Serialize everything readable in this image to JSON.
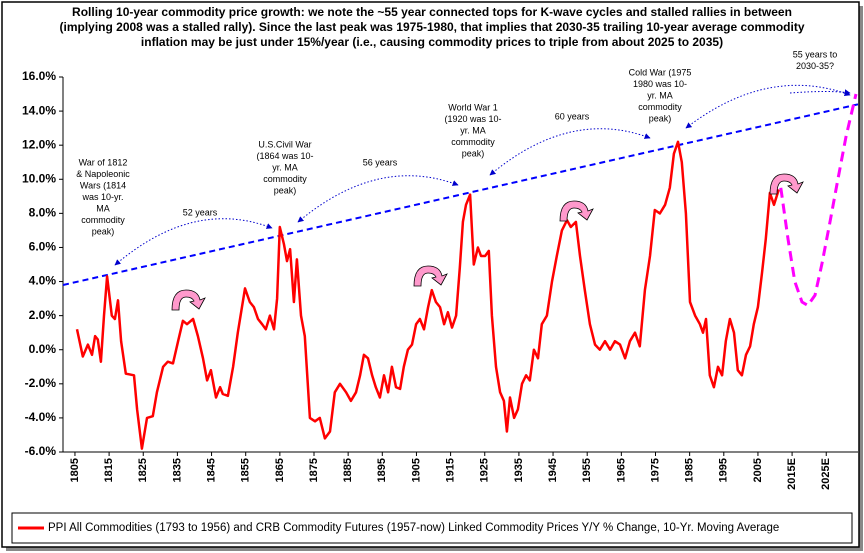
{
  "chart_data": {
    "type": "line",
    "title": [
      "Rolling 10-year commodity price growth: we note the ~55 year connected tops for K-wave cycles and stalled rallies in between",
      "(implying 2008 was a stalled rally). Since the last peak was 1975-1980, that implies that 2030-35 trailing 10-year average commodity",
      "inflation may be just under 15%/year (i.e., causing commodity prices to triple from about 2025 to 2035)"
    ],
    "xlim": [
      1801.5,
      2034.3
    ],
    "xticks": [
      1805,
      1815,
      1825,
      1835,
      1845,
      1855,
      1865,
      1875,
      1885,
      1895,
      1905,
      1915,
      1925,
      1935,
      1945,
      1955,
      1965,
      1975,
      1985,
      1995,
      2005,
      {
        "value": 2015,
        "label": "2015E"
      },
      {
        "value": 2025,
        "label": "2025E"
      }
    ],
    "ylim": [
      -6,
      16
    ],
    "yticks": [
      {
        "value": -6,
        "label": "-6.0%"
      },
      {
        "value": -4,
        "label": "-4.0%"
      },
      {
        "value": -2,
        "label": "-2.0%"
      },
      {
        "value": 0,
        "label": "0.0%"
      },
      {
        "value": 2,
        "label": "2.0%"
      },
      {
        "value": 4,
        "label": "4.0%"
      },
      {
        "value": 6,
        "label": "6.0%"
      },
      {
        "value": 8,
        "label": "8.0%"
      },
      {
        "value": 10,
        "label": "10.0%"
      },
      {
        "value": 12,
        "label": "12.0%"
      },
      {
        "value": 14,
        "label": "14.0%"
      },
      {
        "value": 16,
        "label": "16.0%"
      }
    ],
    "series": [
      {
        "name": "PPI All Commodities (1793 to 1956) and CRB Commodity Futures (1957-now) Linked Commodity Prices Y/Y % Change, 10-Yr. Moving Average",
        "color": "#ff0000",
        "x": [
          1805.6,
          1807.3,
          1808.8,
          1810,
          1810.9,
          1811.7,
          1812.6,
          1813.5,
          1814.4,
          1815.8,
          1816.7,
          1817.6,
          1818.5,
          1819.9,
          1822.3,
          1823.2,
          1824.6,
          1826.1,
          1827.8,
          1829,
          1830.8,
          1832.2,
          1833.7,
          1835.2,
          1836.6,
          1837.8,
          1839.6,
          1841,
          1842.5,
          1843.7,
          1844.8,
          1846.3,
          1847.5,
          1848.3,
          1849.8,
          1851.3,
          1852.7,
          1854.8,
          1856.2,
          1857.4,
          1858.6,
          1859.8,
          1860.9,
          1862.1,
          1863.3,
          1864.2,
          1865,
          1866.2,
          1867.1,
          1868,
          1869.1,
          1870,
          1871.2,
          1872.3,
          1873.8,
          1875.3,
          1876.7,
          1878.2,
          1879.7,
          1881.1,
          1882.6,
          1884.4,
          1885.8,
          1887.3,
          1888.5,
          1889.6,
          1890.8,
          1892,
          1893.1,
          1894.3,
          1895.5,
          1896.7,
          1897.8,
          1899,
          1900.2,
          1901.3,
          1902.5,
          1903.7,
          1904.9,
          1906,
          1907.2,
          1908.4,
          1909.5,
          1910.7,
          1911.9,
          1913.1,
          1914.2,
          1915.4,
          1916.6,
          1917.7,
          1918.6,
          1919.5,
          1920.7,
          1921.8,
          1923,
          1923.9,
          1925.1,
          1926.2,
          1927.1,
          1928.3,
          1929.5,
          1930.6,
          1931.5,
          1932.4,
          1933.6,
          1934.7,
          1935.9,
          1937.1,
          1938.2,
          1939.4,
          1940.6,
          1941.7,
          1943.2,
          1944.7,
          1946.1,
          1947.6,
          1949.1,
          1950.2,
          1951.7,
          1952.9,
          1954.3,
          1955.8,
          1957.3,
          1958.7,
          1960.2,
          1961.7,
          1963.1,
          1964.6,
          1966.1,
          1967.5,
          1969,
          1970.4,
          1971.9,
          1973.4,
          1974.8,
          1976.3,
          1977.8,
          1979.2,
          1980.4,
          1981.6,
          1982.7,
          1983.9,
          1985.1,
          1986.6,
          1988,
          1988.9,
          1989.8,
          1990.9,
          1992.1,
          1993.3,
          1994.5,
          1995.6,
          1996.8,
          1998,
          1999.1,
          2000.3,
          2001.5,
          2002.7,
          2003.8,
          2005,
          2006.2,
          2007.3,
          2008.5,
          2009.7,
          2011.1
        ],
        "values": [
          1.2,
          -0.4,
          0.3,
          -0.3,
          0.8,
          0.6,
          -0.7,
          2.0,
          4.3,
          2.0,
          1.8,
          2.9,
          0.5,
          -1.4,
          -1.5,
          -3.5,
          -5.8,
          -4.0,
          -3.9,
          -2.5,
          -1.0,
          -0.7,
          -0.8,
          0.5,
          1.7,
          1.5,
          1.8,
          0.8,
          -0.5,
          -1.8,
          -1.2,
          -2.8,
          -2.2,
          -2.6,
          -2.7,
          -1.0,
          1.0,
          3.6,
          2.8,
          2.5,
          1.8,
          1.5,
          1.2,
          2.0,
          1.2,
          3.0,
          7.2,
          6.2,
          5.2,
          5.9,
          2.8,
          5.3,
          2.0,
          0.8,
          -4.0,
          -4.2,
          -4.0,
          -5.2,
          -4.8,
          -2.5,
          -2.0,
          -2.5,
          -3.0,
          -2.5,
          -1.5,
          -0.3,
          -0.5,
          -1.5,
          -2.2,
          -2.8,
          -1.5,
          -2.5,
          -1.0,
          -2.2,
          -2.3,
          -1.0,
          0.0,
          0.3,
          1.5,
          1.8,
          1.2,
          2.5,
          3.5,
          2.8,
          2.5,
          1.5,
          2.2,
          1.3,
          2.0,
          4.8,
          7.5,
          8.5,
          9.1,
          5.0,
          6.0,
          5.5,
          5.5,
          5.8,
          2.0,
          -1.0,
          -2.5,
          -3.0,
          -4.8,
          -2.8,
          -4.0,
          -3.5,
          -2.0,
          -1.5,
          -1.8,
          0.0,
          -0.5,
          1.5,
          2.0,
          4.0,
          5.5,
          7.0,
          7.6,
          7.2,
          7.5,
          5.5,
          3.5,
          1.5,
          0.3,
          0.0,
          0.5,
          0.0,
          0.5,
          0.3,
          -0.5,
          0.5,
          1.0,
          0.2,
          3.5,
          5.5,
          8.2,
          8.0,
          8.5,
          9.5,
          11.5,
          12.2,
          11.0,
          8.0,
          2.8,
          2.0,
          1.5,
          1.0,
          1.8,
          -1.5,
          -2.2,
          -1.0,
          -1.5,
          0.5,
          1.8,
          1.0,
          -1.2,
          -1.5,
          -0.3,
          0.2,
          1.5,
          2.5,
          4.5,
          6.5,
          9.2,
          8.5,
          9.4
        ]
      }
    ],
    "projection": {
      "color": "#ff00ff",
      "x": [
        2011.7,
        2013.8,
        2015.8,
        2017.9,
        2019.6,
        2021.7,
        2023.7,
        2026.1,
        2028.4,
        2030.8,
        2033.7
      ],
      "values": [
        9.5,
        6.5,
        4.0,
        2.8,
        2.6,
        3.2,
        5.0,
        7.5,
        10.0,
        12.5,
        15.0
      ]
    },
    "trendline": {
      "color": "#0000ff",
      "x": [
        1801.5,
        2034.3
      ],
      "values": [
        3.8,
        14.4
      ]
    },
    "annotations": [
      {
        "lines": [
          "War of 1812",
          "& Napoleonic",
          "Wars (1814",
          "was 10-yr.",
          "MA",
          "commodity",
          "peak)"
        ]
      },
      {
        "lines": [
          "52 years"
        ]
      },
      {
        "lines": [
          "U.S.Civil War",
          "(1864 was 10-",
          "yr. MA",
          "commodity",
          "peak)"
        ]
      },
      {
        "lines": [
          "56 years"
        ]
      },
      {
        "lines": [
          "World War 1",
          "(1920 was 10-",
          "yr. MA",
          "commodity",
          "peak)"
        ]
      },
      {
        "lines": [
          "60 years"
        ]
      },
      {
        "lines": [
          "Cold War (1975",
          "1980 was 10-",
          "yr. MA",
          "commodity",
          "peak)"
        ]
      },
      {
        "lines": [
          "55 years to",
          "2030-35?"
        ]
      }
    ]
  }
}
